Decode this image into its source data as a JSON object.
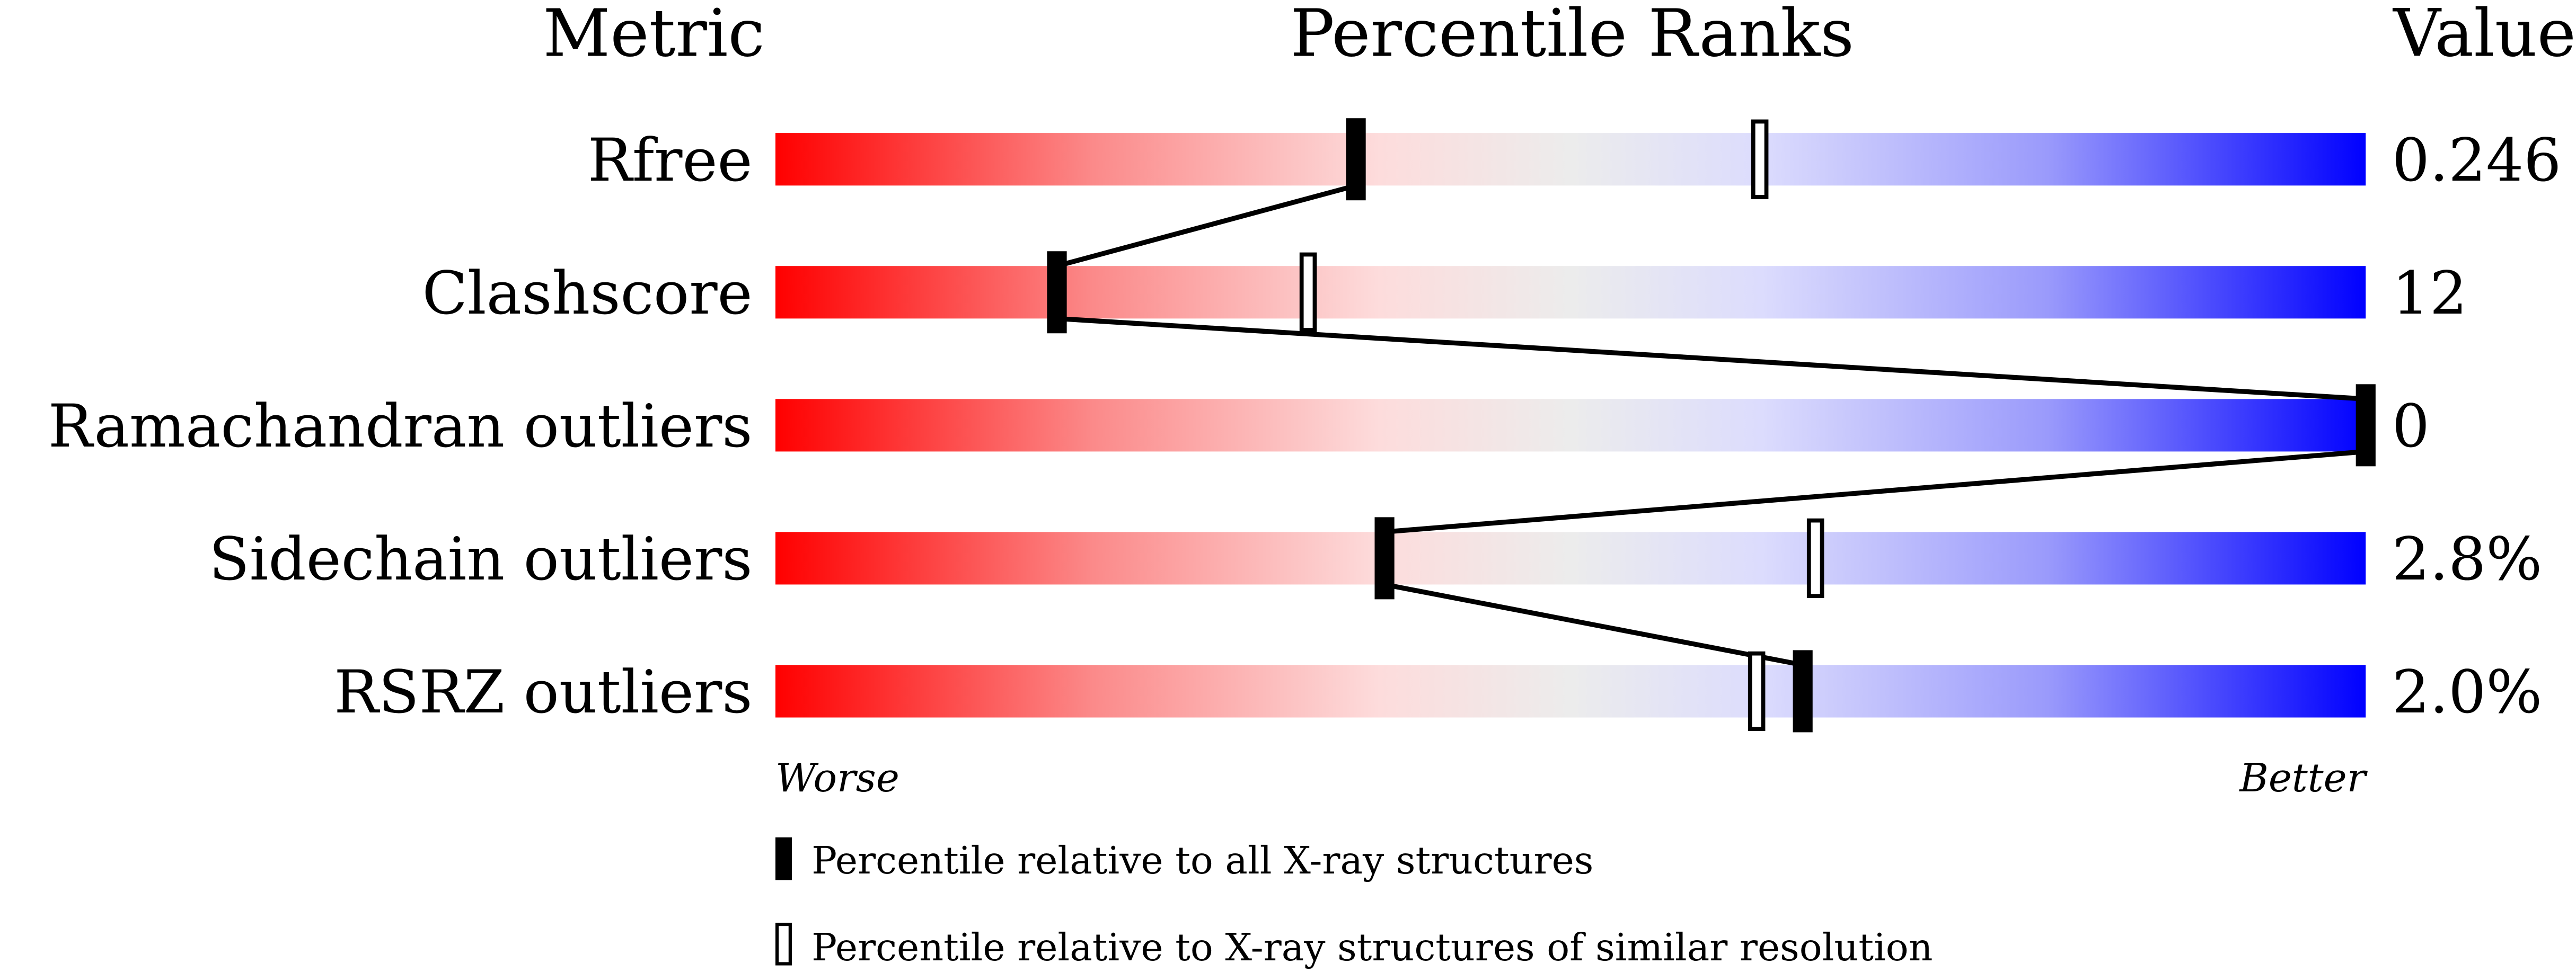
{
  "chart_data": {
    "type": "percentile-ranks",
    "headers": {
      "metric": "Metric",
      "ranks": "Percentile Ranks",
      "value": "Value"
    },
    "axis": {
      "left": "Worse",
      "right": "Better",
      "range": [
        0,
        100
      ]
    },
    "colors": {
      "worse": "#ff0000",
      "mid": "#eeeeee",
      "better": "#0000ff"
    },
    "rows": [
      {
        "metric": "Rfree",
        "value": "0.246",
        "percentile_all": 36.5,
        "percentile_similar": 61.9
      },
      {
        "metric": "Clashscore",
        "value": "12",
        "percentile_all": 17.7,
        "percentile_similar": 33.5
      },
      {
        "metric": "Ramachandran outliers",
        "value": "0",
        "percentile_all": 100,
        "percentile_similar": null
      },
      {
        "metric": "Sidechain outliers",
        "value": "2.8%",
        "percentile_all": 38.3,
        "percentile_similar": 65.4
      },
      {
        "metric": "RSRZ outliers",
        "value": "2.0%",
        "percentile_all": 64.6,
        "percentile_similar": 61.7
      }
    ],
    "legend": {
      "all": "Percentile relative to all X-ray structures",
      "similar": "Percentile relative to X-ray structures of similar resolution"
    }
  }
}
